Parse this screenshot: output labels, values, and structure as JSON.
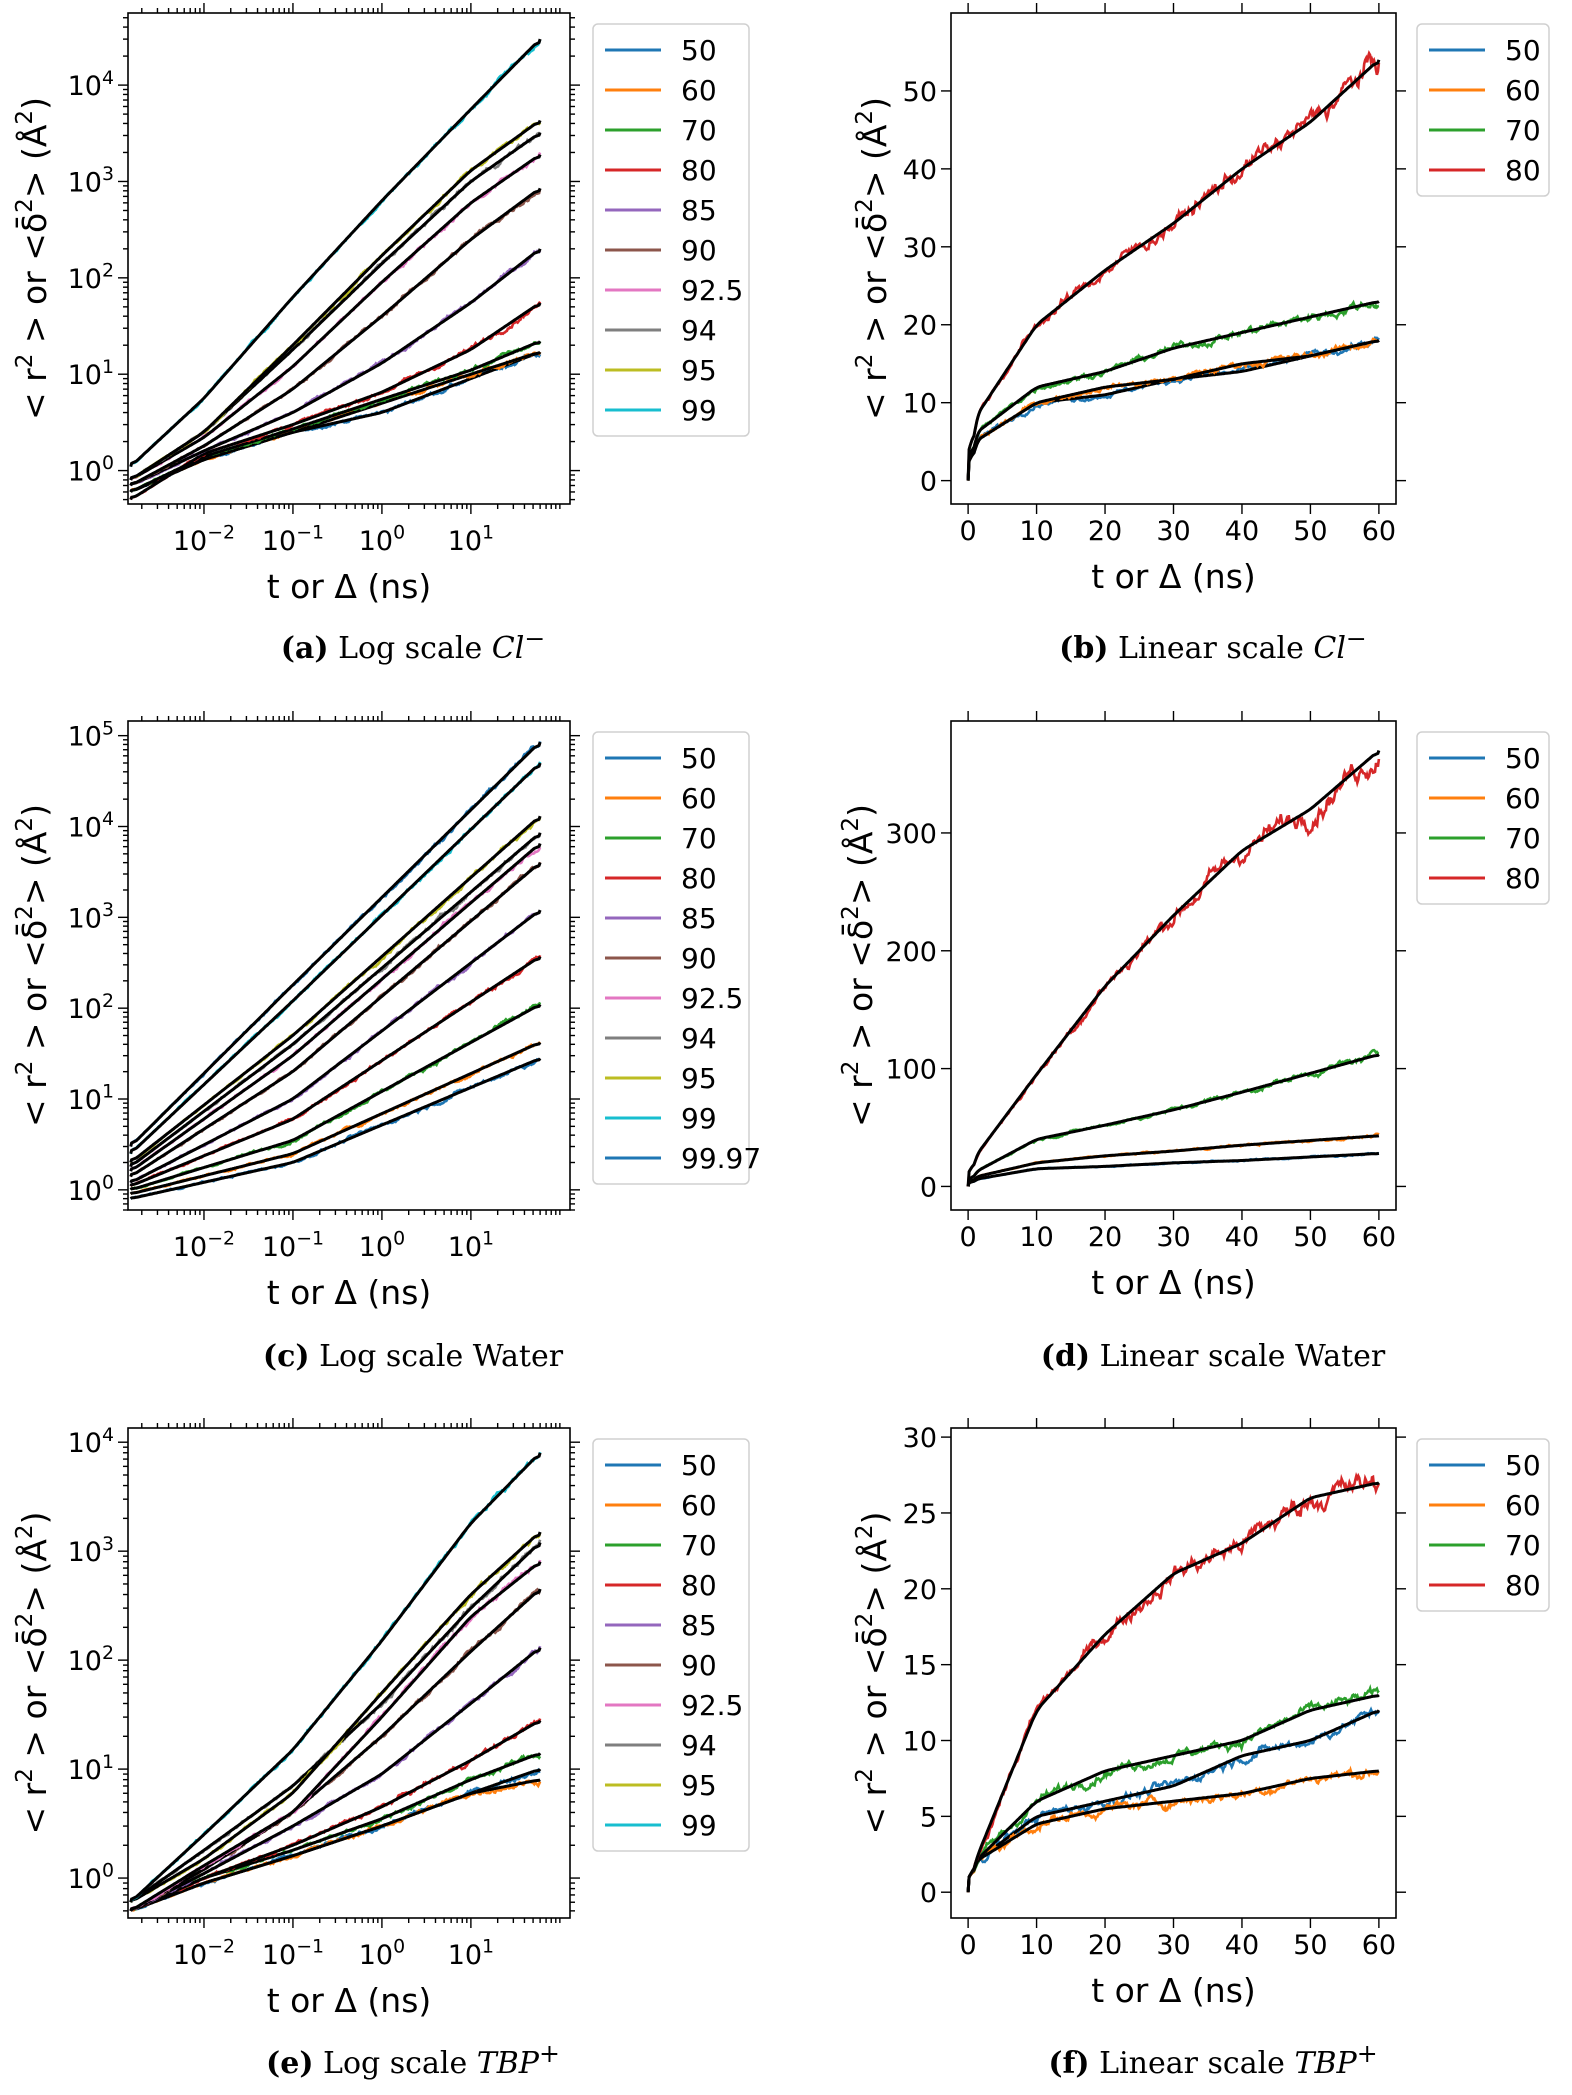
{
  "chart_data": [
    {
      "id": "a",
      "type": "line",
      "xscale": "log",
      "yscale": "log",
      "xlim": [
        0.0014,
        130
      ],
      "ylim": [
        0.45,
        56000
      ],
      "xticks": [
        0.01,
        0.1,
        1,
        10
      ],
      "xtick_labels": [
        "10^−2",
        "10^−1",
        "10^0",
        "10^1"
      ],
      "yticks": [
        1,
        10,
        100,
        1000,
        10000
      ],
      "ytick_labels": [
        "10^0",
        "10^1",
        "10^2",
        "10^3",
        "10^4"
      ],
      "xlabel": "t or Δ (ns)",
      "ylabel": "< r^2 >  or  <δ̄^2> (Å^2)",
      "legend_position": "outside-right-top",
      "caption": {
        "label": "(a)",
        "text": " Log scale ",
        "species": "Cl",
        "sup": "−"
      },
      "x": [
        0.0015,
        0.01,
        0.1,
        1,
        10,
        60
      ],
      "series": [
        {
          "name": "50",
          "color": "#1f77b4",
          "values": [
            0.6,
            1.3,
            2.5,
            4,
            9,
            17
          ]
        },
        {
          "name": "60",
          "color": "#ff7f0e",
          "values": [
            0.6,
            1.3,
            2.5,
            5,
            10,
            17
          ]
        },
        {
          "name": "70",
          "color": "#2ca02c",
          "values": [
            0.6,
            1.4,
            2.7,
            5.5,
            11,
            22
          ]
        },
        {
          "name": "80",
          "color": "#d62728",
          "values": [
            0.5,
            1.5,
            3,
            6.5,
            18,
            55
          ]
        },
        {
          "name": "85",
          "color": "#9467bd",
          "values": [
            0.7,
            1.6,
            4,
            13,
            55,
            200
          ]
        },
        {
          "name": "90",
          "color": "#8c564b",
          "values": [
            0.7,
            1.8,
            7,
            40,
            250,
            850
          ]
        },
        {
          "name": "92.5",
          "color": "#e377c2",
          "values": [
            0.8,
            2.2,
            12,
            90,
            600,
            1900
          ]
        },
        {
          "name": "94",
          "color": "#7f7f7f",
          "values": [
            0.8,
            2.5,
            18,
            140,
            1000,
            3200
          ]
        },
        {
          "name": "95",
          "color": "#bcbd22",
          "values": [
            0.8,
            2.5,
            20,
            170,
            1300,
            4300
          ]
        },
        {
          "name": "99",
          "color": "#17becf",
          "values": [
            1.1,
            5.6,
            63,
            630,
            5600,
            30000
          ]
        }
      ]
    },
    {
      "id": "b",
      "type": "line",
      "xscale": "linear",
      "yscale": "linear",
      "xlim": [
        -2.5,
        62.5
      ],
      "ylim": [
        -3,
        60
      ],
      "xticks": [
        0,
        10,
        20,
        30,
        40,
        50,
        60
      ],
      "xtick_labels": [
        "0",
        "10",
        "20",
        "30",
        "40",
        "50",
        "60"
      ],
      "yticks": [
        0,
        10,
        20,
        30,
        40,
        50
      ],
      "ytick_labels": [
        "0",
        "10",
        "20",
        "30",
        "40",
        "50"
      ],
      "xlabel": "t or Δ (ns)",
      "ylabel": "< r^2 >  or  <δ̄^2> (Å^2)",
      "legend_position": "outside-right-top",
      "caption": {
        "label": "(b)",
        "text": " Linear scale ",
        "species": "Cl",
        "sup": "−"
      },
      "x": [
        0,
        1,
        10,
        20,
        30,
        40,
        50,
        60
      ],
      "series": [
        {
          "name": "50",
          "color": "#1f77b4",
          "values": [
            0,
            5,
            10,
            11,
            13,
            14,
            16,
            18
          ]
        },
        {
          "name": "60",
          "color": "#ff7f0e",
          "values": [
            0,
            5,
            10,
            12,
            13,
            15,
            16,
            18
          ]
        },
        {
          "name": "70",
          "color": "#2ca02c",
          "values": [
            0,
            6,
            12,
            14,
            17,
            19,
            21,
            23
          ]
        },
        {
          "name": "80",
          "color": "#d62728",
          "values": [
            0,
            8,
            20,
            27,
            33,
            40,
            46,
            54
          ]
        }
      ]
    },
    {
      "id": "c",
      "type": "line",
      "xscale": "log",
      "yscale": "log",
      "xlim": [
        0.0014,
        130
      ],
      "ylim": [
        0.6,
        145000
      ],
      "xticks": [
        0.01,
        0.1,
        1,
        10
      ],
      "xtick_labels": [
        "10^−2",
        "10^−1",
        "10^0",
        "10^1"
      ],
      "yticks": [
        1,
        10,
        100,
        1000,
        10000,
        100000
      ],
      "ytick_labels": [
        "10^0",
        "10^1",
        "10^2",
        "10^3",
        "10^4",
        "10^5"
      ],
      "xlabel": "t or Δ (ns)",
      "ylabel": "< r^2 >  or  <δ̄^2> (Å^2)",
      "legend_position": "outside-right-top",
      "caption": {
        "label": "(c)",
        "text": " Log scale Water",
        "species": "",
        "sup": ""
      },
      "x": [
        0.0015,
        0.1,
        60
      ],
      "series": [
        {
          "name": "50",
          "color": "#1f77b4",
          "values": [
            0.8,
            2,
            28
          ]
        },
        {
          "name": "60",
          "color": "#ff7f0e",
          "values": [
            0.9,
            2.5,
            42
          ]
        },
        {
          "name": "70",
          "color": "#2ca02c",
          "values": [
            1,
            3.5,
            110
          ]
        },
        {
          "name": "80",
          "color": "#d62728",
          "values": [
            1.1,
            6,
            370
          ]
        },
        {
          "name": "85",
          "color": "#9467bd",
          "values": [
            1.2,
            10,
            1200
          ]
        },
        {
          "name": "90",
          "color": "#8c564b",
          "values": [
            1.4,
            20,
            4000
          ]
        },
        {
          "name": "92.5",
          "color": "#e377c2",
          "values": [
            1.6,
            30,
            6500
          ]
        },
        {
          "name": "94",
          "color": "#7f7f7f",
          "values": [
            1.8,
            40,
            8500
          ]
        },
        {
          "name": "95",
          "color": "#bcbd22",
          "values": [
            2,
            50,
            13000
          ]
        },
        {
          "name": "99",
          "color": "#17becf",
          "values": [
            2.5,
            120,
            50000
          ]
        },
        {
          "name": "99.97",
          "color": "#1f77b4",
          "values": [
            3,
            180,
            85000
          ]
        }
      ]
    },
    {
      "id": "d",
      "type": "line",
      "xscale": "linear",
      "yscale": "linear",
      "xlim": [
        -2.5,
        62.5
      ],
      "ylim": [
        -20,
        395
      ],
      "xticks": [
        0,
        10,
        20,
        30,
        40,
        50,
        60
      ],
      "xtick_labels": [
        "0",
        "10",
        "20",
        "30",
        "40",
        "50",
        "60"
      ],
      "yticks": [
        0,
        100,
        200,
        300
      ],
      "ytick_labels": [
        "0",
        "100",
        "200",
        "300"
      ],
      "xlabel": "t or Δ (ns)",
      "ylabel": "< r^2 >  or  <δ̄^2> (Å^2)",
      "legend_position": "outside-right-top",
      "caption": {
        "label": "(d)",
        "text": " Linear scale Water",
        "species": "",
        "sup": ""
      },
      "x": [
        0,
        1,
        10,
        20,
        30,
        40,
        50,
        60
      ],
      "series": [
        {
          "name": "50",
          "color": "#1f77b4",
          "values": [
            0,
            6,
            15,
            17,
            20,
            22,
            25,
            28
          ]
        },
        {
          "name": "60",
          "color": "#ff7f0e",
          "values": [
            0,
            8,
            20,
            26,
            30,
            35,
            39,
            43
          ]
        },
        {
          "name": "70",
          "color": "#2ca02c",
          "values": [
            0,
            12,
            40,
            52,
            65,
            80,
            96,
            112
          ]
        },
        {
          "name": "80",
          "color": "#d62728",
          "values": [
            0,
            25,
            95,
            170,
            230,
            285,
            320,
            370
          ]
        }
      ]
    },
    {
      "id": "e",
      "type": "line",
      "xscale": "log",
      "yscale": "log",
      "xlim": [
        0.0014,
        130
      ],
      "ylim": [
        0.43,
        13500
      ],
      "xticks": [
        0.01,
        0.1,
        1,
        10
      ],
      "xtick_labels": [
        "10^−2",
        "10^−1",
        "10^0",
        "10^1"
      ],
      "yticks": [
        1,
        10,
        100,
        1000,
        10000
      ],
      "ytick_labels": [
        "10^0",
        "10^1",
        "10^2",
        "10^3",
        "10^4"
      ],
      "xlabel": "t or Δ (ns)",
      "ylabel": "< r^2 >  or  <δ̄^2> (Å^2)",
      "legend_position": "outside-right-top",
      "caption": {
        "label": "(e)",
        "text": " Log scale ",
        "species": "TBP",
        "sup": "+"
      },
      "x": [
        0.0015,
        0.01,
        0.1,
        1,
        10,
        60
      ],
      "series": [
        {
          "name": "50",
          "color": "#1f77b4",
          "values": [
            0.5,
            0.9,
            1.6,
            3,
            6,
            10
          ]
        },
        {
          "name": "60",
          "color": "#ff7f0e",
          "values": [
            0.5,
            0.9,
            1.6,
            3,
            6,
            8
          ]
        },
        {
          "name": "70",
          "color": "#2ca02c",
          "values": [
            0.5,
            1,
            1.8,
            3.5,
            8,
            14
          ]
        },
        {
          "name": "80",
          "color": "#d62728",
          "values": [
            0.5,
            1,
            2,
            4.5,
            12,
            28
          ]
        },
        {
          "name": "85",
          "color": "#9467bd",
          "values": [
            0.5,
            1.1,
            3,
            9,
            40,
            130
          ]
        },
        {
          "name": "90",
          "color": "#8c564b",
          "values": [
            0.5,
            1.2,
            4,
            20,
            120,
            450
          ]
        },
        {
          "name": "92.5",
          "color": "#e377c2",
          "values": [
            0.5,
            1.3,
            4,
            30,
            250,
            800
          ]
        },
        {
          "name": "94",
          "color": "#7f7f7f",
          "values": [
            0.6,
            1.8,
            7,
            40,
            300,
            1200
          ]
        },
        {
          "name": "95",
          "color": "#bcbd22",
          "values": [
            0.6,
            1.5,
            6,
            50,
            400,
            1500
          ]
        },
        {
          "name": "99",
          "color": "#17becf",
          "values": [
            0.6,
            2.5,
            15,
            150,
            1800,
            8000
          ]
        }
      ]
    },
    {
      "id": "f",
      "type": "line",
      "xscale": "linear",
      "yscale": "linear",
      "xlim": [
        -2.5,
        62.5
      ],
      "ylim": [
        -1.7,
        30.6
      ],
      "xticks": [
        0,
        10,
        20,
        30,
        40,
        50,
        60
      ],
      "xtick_labels": [
        "0",
        "10",
        "20",
        "30",
        "40",
        "50",
        "60"
      ],
      "yticks": [
        0,
        5,
        10,
        15,
        20,
        25,
        30
      ],
      "ytick_labels": [
        "0",
        "5",
        "10",
        "15",
        "20",
        "25",
        "30"
      ],
      "xlabel": "t or Δ (ns)",
      "ylabel": "< r^2 >  or  <δ̄^2> (Å^2)",
      "legend_position": "outside-right-top",
      "caption": {
        "label": "(f)",
        "text": " Linear scale ",
        "species": "TBP",
        "sup": "+"
      },
      "x": [
        0,
        1,
        10,
        20,
        30,
        40,
        50,
        60
      ],
      "series": [
        {
          "name": "50",
          "color": "#1f77b4",
          "values": [
            0,
            2,
            5,
            6,
            7,
            9,
            10,
            12
          ]
        },
        {
          "name": "60",
          "color": "#ff7f0e",
          "values": [
            0,
            2,
            4.5,
            5.5,
            6,
            6.5,
            7.5,
            8
          ]
        },
        {
          "name": "70",
          "color": "#2ca02c",
          "values": [
            0,
            2,
            6,
            8,
            9,
            10,
            12,
            13
          ]
        },
        {
          "name": "80",
          "color": "#d62728",
          "values": [
            0,
            2,
            12,
            17,
            21,
            23,
            26,
            27
          ]
        }
      ]
    }
  ]
}
